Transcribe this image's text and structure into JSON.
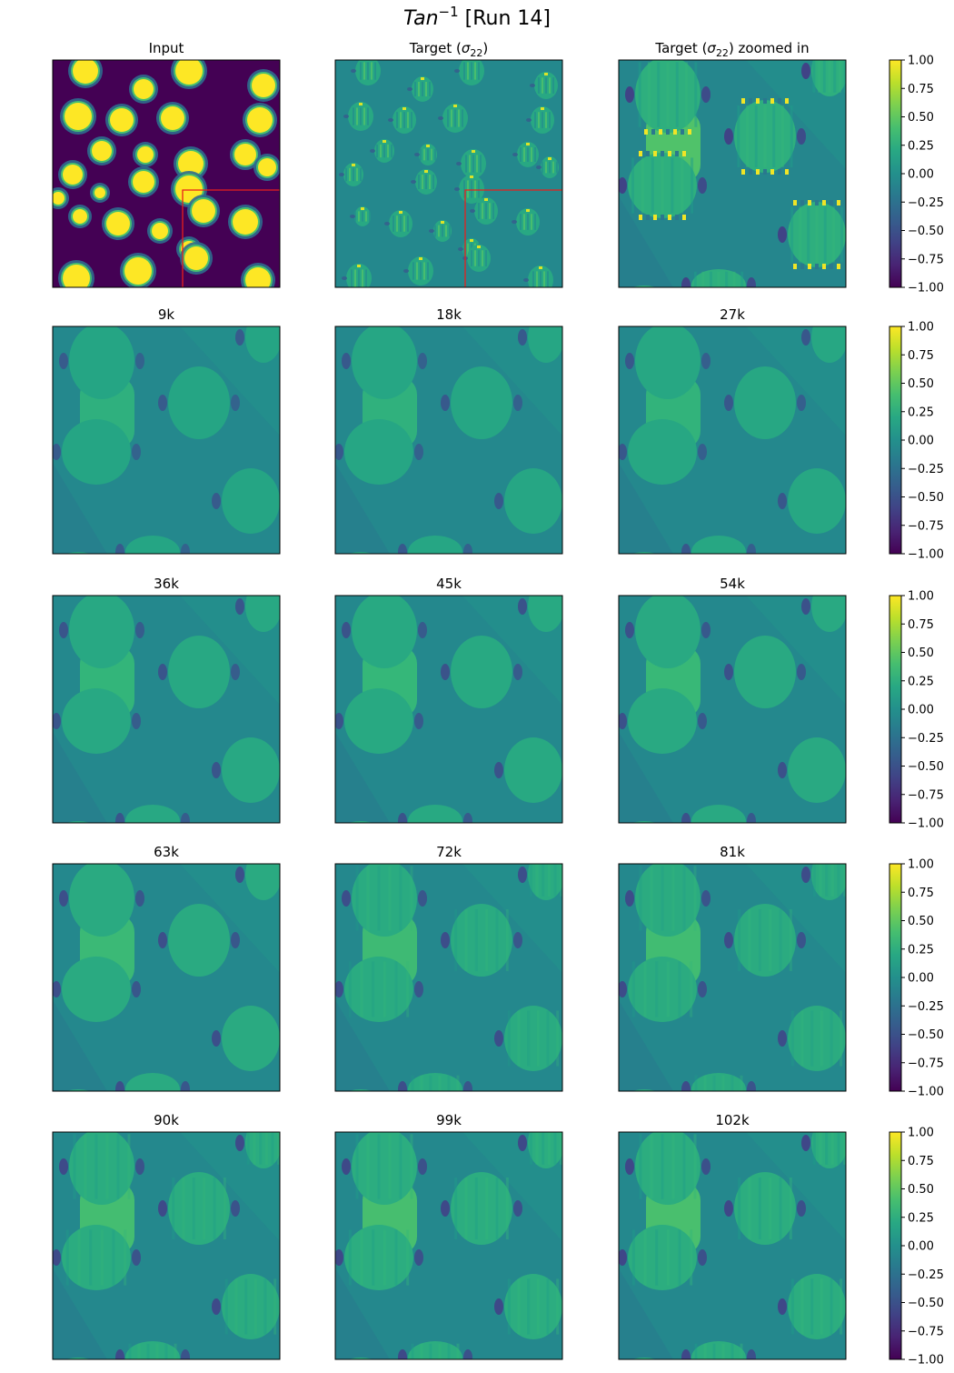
{
  "figure": {
    "title_main": "Tan",
    "title_sup": "−1",
    "title_rest": " [Run 14]"
  },
  "colors": {
    "viridis_low": "#440154",
    "viridis_mid": "#21918c",
    "viridis_high": "#fde725",
    "zoom_box": "#e8201c"
  },
  "chart_data": {
    "type": "heatmap",
    "colormap": "viridis",
    "value_range": [
      -1.0,
      1.0
    ],
    "colorbar_ticks": [
      "1.00",
      "0.75",
      "0.50",
      "0.25",
      "0.00",
      "−0.25",
      "−0.50",
      "−0.75",
      "−1.00"
    ],
    "panels": [
      {
        "title": "Input",
        "kind": "input",
        "zoom_box": true
      },
      {
        "title_pre": "Target (",
        "title_sym": "σ",
        "title_sub": "22",
        "title_post": ")",
        "kind": "target",
        "zoom_box": true
      },
      {
        "title_pre": "Target (",
        "title_sym": "σ",
        "title_sub": "22",
        "title_post": ") zoomed in",
        "kind": "zoom"
      },
      {
        "title": "9k",
        "kind": "pred",
        "sharpness": 0.15
      },
      {
        "title": "18k",
        "kind": "pred",
        "sharpness": 0.22
      },
      {
        "title": "27k",
        "kind": "pred",
        "sharpness": 0.3
      },
      {
        "title": "36k",
        "kind": "pred",
        "sharpness": 0.38
      },
      {
        "title": "45k",
        "kind": "pred",
        "sharpness": 0.45
      },
      {
        "title": "54k",
        "kind": "pred",
        "sharpness": 0.52
      },
      {
        "title": "63k",
        "kind": "pred",
        "sharpness": 0.58
      },
      {
        "title": "72k",
        "kind": "pred",
        "sharpness": 0.64
      },
      {
        "title": "81k",
        "kind": "pred",
        "sharpness": 0.7
      },
      {
        "title": "90k",
        "kind": "pred",
        "sharpness": 0.76
      },
      {
        "title": "99k",
        "kind": "pred",
        "sharpness": 0.82
      },
      {
        "title": "102k",
        "kind": "pred",
        "sharpness": 0.86
      }
    ]
  }
}
